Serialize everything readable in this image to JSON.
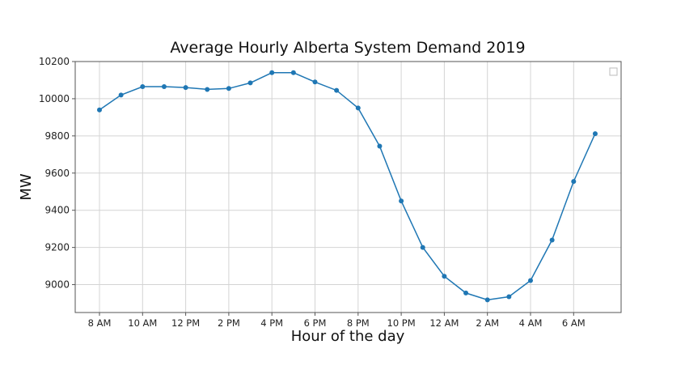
{
  "chart_data": {
    "type": "line",
    "title": "Average Hourly Alberta System Demand 2019",
    "xlabel": "Hour of the day",
    "ylabel": "MW",
    "ylim": [
      8850,
      10200
    ],
    "yticks": [
      9000,
      9200,
      9400,
      9600,
      9800,
      10000,
      10200
    ],
    "x": [
      "8 AM",
      "9 AM",
      "10 AM",
      "11 AM",
      "12 PM",
      "1 PM",
      "2 PM",
      "3 PM",
      "4 PM",
      "5 PM",
      "6 PM",
      "7 PM",
      "8 PM",
      "9 PM",
      "10 PM",
      "11 PM",
      "12 AM",
      "1 AM",
      "2 AM",
      "3 AM",
      "4 AM",
      "5 AM",
      "6 AM",
      "7 AM"
    ],
    "xtick_labels": [
      "8 AM",
      "10 AM",
      "12 PM",
      "2 PM",
      "4 PM",
      "6 PM",
      "8 PM",
      "10 PM",
      "12 AM",
      "2 AM",
      "4 AM",
      "6 AM"
    ],
    "series": [
      {
        "color": "#1f77b4",
        "values": [
          9940,
          10020,
          10065,
          10065,
          10060,
          10050,
          10055,
          10085,
          10140,
          10140,
          10090,
          10045,
          9950,
          9745,
          9450,
          9200,
          9045,
          8955,
          8918,
          8935,
          9022,
          9240,
          9555,
          9812
        ]
      }
    ],
    "grid": true,
    "legend": "top-right"
  }
}
